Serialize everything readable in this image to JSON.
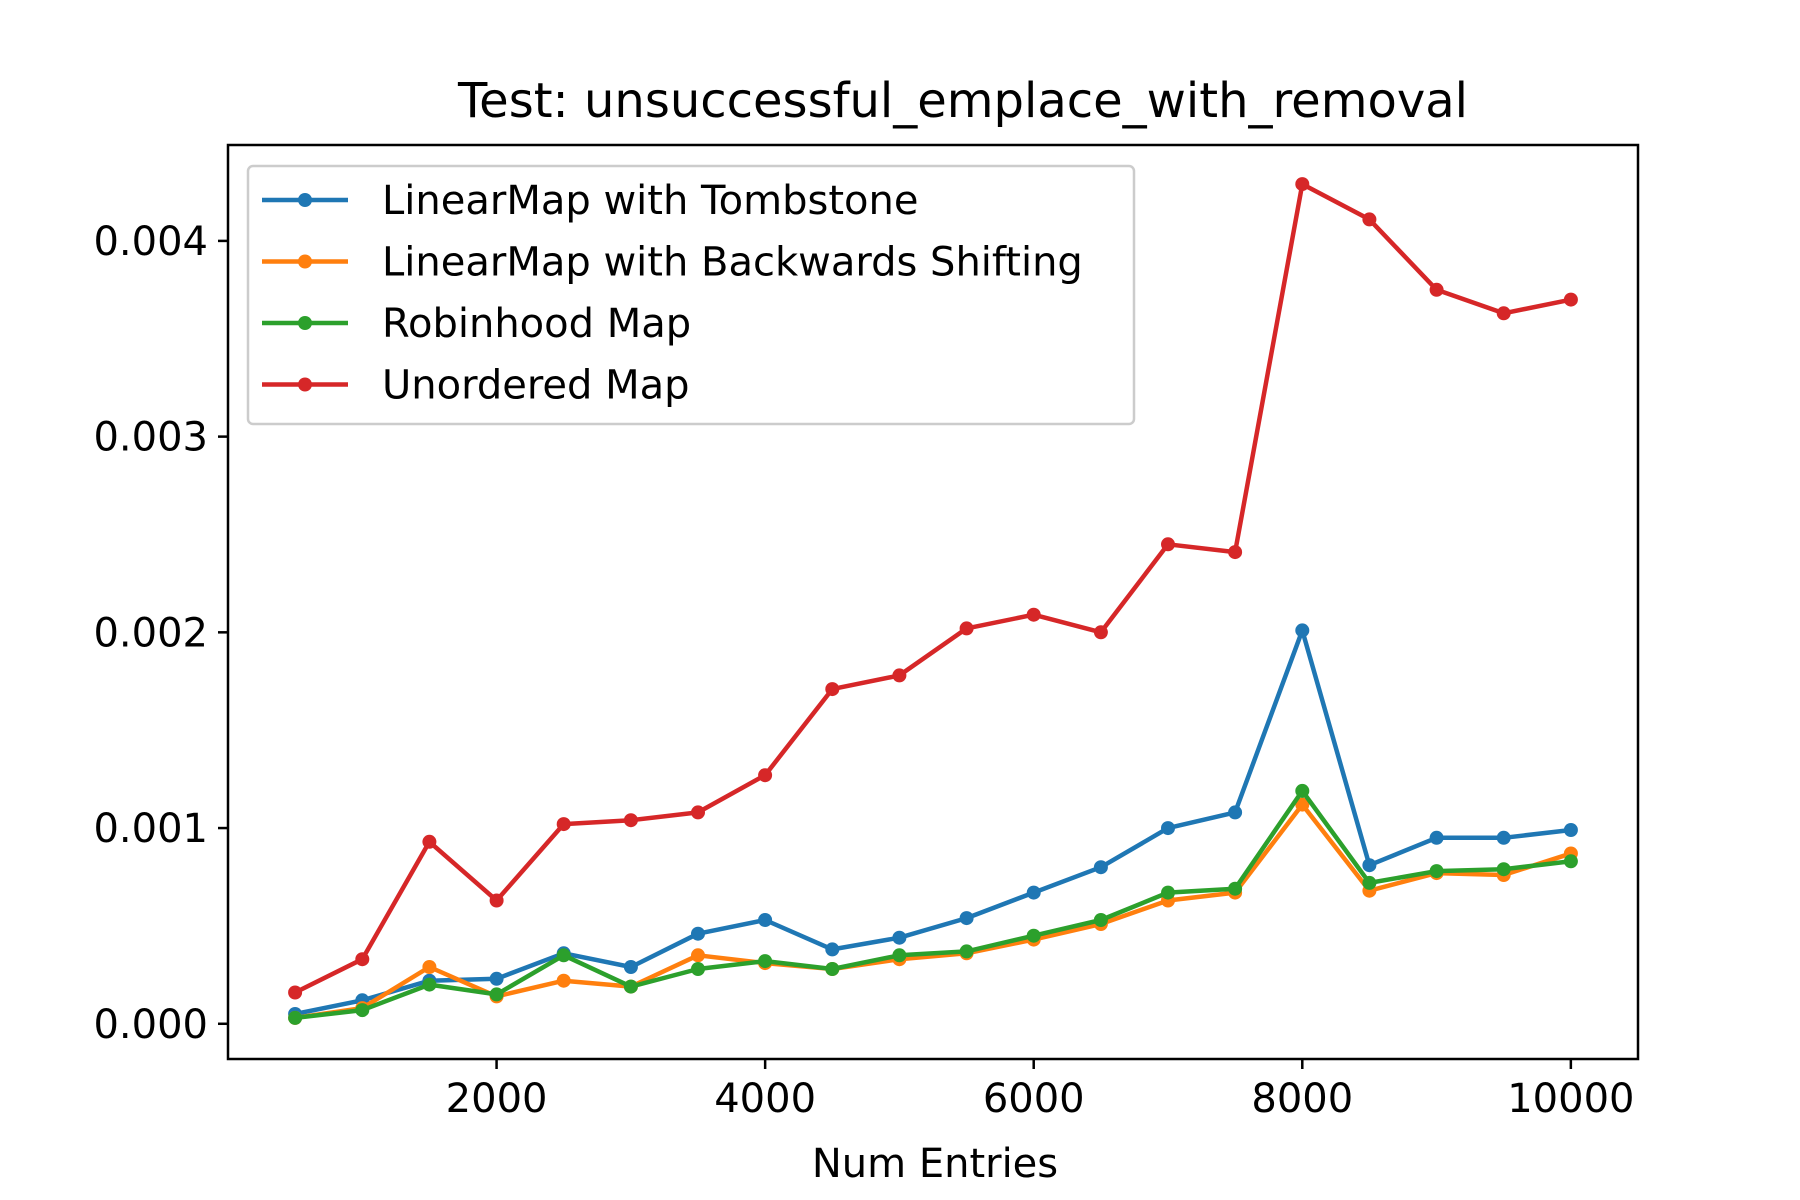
{
  "chart_data": {
    "type": "line",
    "title": "Test: unsuccessful_emplace_with_removal",
    "xlabel": "Num Entries",
    "ylabel": "",
    "xlim": [
      0,
      10500
    ],
    "ylim": [
      -0.00018,
      0.00449
    ],
    "xticks": [
      2000,
      4000,
      6000,
      8000,
      10000
    ],
    "xtick_labels": [
      "2000",
      "4000",
      "6000",
      "8000",
      "10000"
    ],
    "yticks": [
      0.0,
      0.001,
      0.002,
      0.003,
      0.004
    ],
    "ytick_labels": [
      "0.000",
      "0.001",
      "0.002",
      "0.003",
      "0.004"
    ],
    "grid": false,
    "legend_position": "top-left",
    "x": [
      500,
      1000,
      1500,
      2000,
      2500,
      3000,
      3500,
      4000,
      4500,
      5000,
      5500,
      6000,
      6500,
      7000,
      7500,
      8000,
      8500,
      9000,
      9500,
      10000
    ],
    "series": [
      {
        "name": "LinearMap with Tombstone",
        "color": "#1f77b4",
        "values": [
          5e-05,
          0.00012,
          0.00022,
          0.00023,
          0.00036,
          0.00029,
          0.00046,
          0.00053,
          0.00038,
          0.00044,
          0.00054,
          0.00067,
          0.0008,
          0.001,
          0.00108,
          0.00201,
          0.00081,
          0.00095,
          0.00095,
          0.00099
        ]
      },
      {
        "name": "LinearMap with Backwards Shifting",
        "color": "#ff7f0e",
        "values": [
          3e-05,
          8e-05,
          0.00029,
          0.00014,
          0.00022,
          0.00019,
          0.00035,
          0.00031,
          0.00028,
          0.00033,
          0.00036,
          0.00043,
          0.00051,
          0.00063,
          0.00067,
          0.00112,
          0.00068,
          0.00077,
          0.00076,
          0.00087
        ]
      },
      {
        "name": "Robinhood Map",
        "color": "#2ca02c",
        "values": [
          3e-05,
          7e-05,
          0.0002,
          0.00015,
          0.00035,
          0.00019,
          0.00028,
          0.00032,
          0.00028,
          0.00035,
          0.00037,
          0.00045,
          0.00053,
          0.00067,
          0.00069,
          0.00119,
          0.00072,
          0.00078,
          0.00079,
          0.00083
        ]
      },
      {
        "name": "Unordered Map",
        "color": "#d62728",
        "values": [
          0.00016,
          0.00033,
          0.00093,
          0.00063,
          0.00102,
          0.00104,
          0.00108,
          0.00127,
          0.00171,
          0.00178,
          0.00202,
          0.00209,
          0.002,
          0.00245,
          0.00241,
          0.00429,
          0.00411,
          0.00375,
          0.00363,
          0.0037
        ]
      }
    ]
  }
}
